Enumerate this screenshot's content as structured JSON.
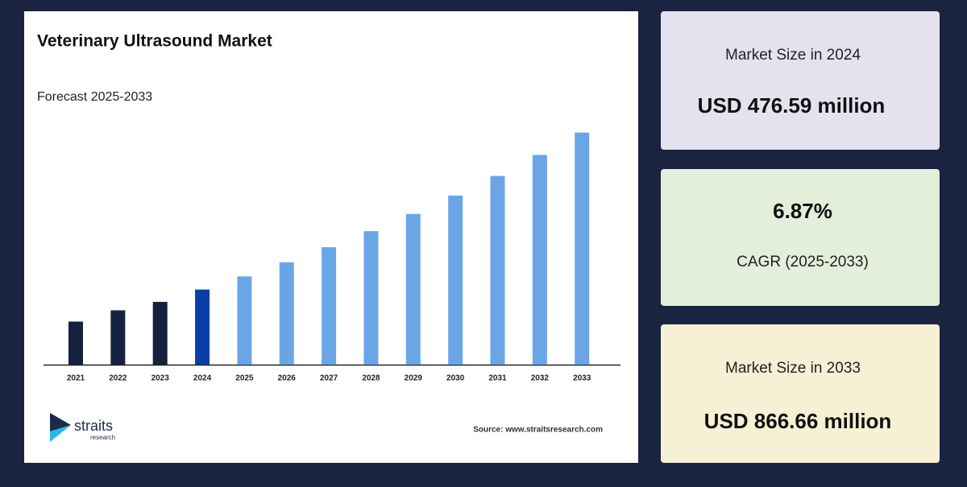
{
  "chart_data": {
    "type": "bar",
    "title": "Veterinary Ultrasound Market",
    "subtitle": "Forecast 2025-2033",
    "categories": [
      "2021",
      "2022",
      "2023",
      "2024",
      "2025",
      "2026",
      "2027",
      "2028",
      "2029",
      "2030",
      "2031",
      "2032",
      "2033"
    ],
    "values": [
      397,
      425,
      446,
      476.59,
      509.33,
      544.32,
      581.72,
      621.68,
      664.39,
      710.03,
      758.81,
      810.94,
      866.66
    ],
    "colors": [
      "#15223f",
      "#15223f",
      "#15223f",
      "#0a3fa8",
      "#6aa6e6",
      "#6aa6e6",
      "#6aa6e6",
      "#6aa6e6",
      "#6aa6e6",
      "#6aa6e6",
      "#6aa6e6",
      "#6aa6e6",
      "#6aa6e6"
    ],
    "ylim": [
      290,
      880
    ],
    "source": "Source: www.straitsresearch.com"
  },
  "logo": {
    "name": "straits",
    "tagline": "research"
  },
  "cards": [
    {
      "label": "Market Size in 2024",
      "value": "USD 476.59 million"
    },
    {
      "label": "CAGR (2025-2033)",
      "value": "6.87%"
    },
    {
      "label": "Market Size in 2033",
      "value": "USD 866.66 million"
    }
  ]
}
